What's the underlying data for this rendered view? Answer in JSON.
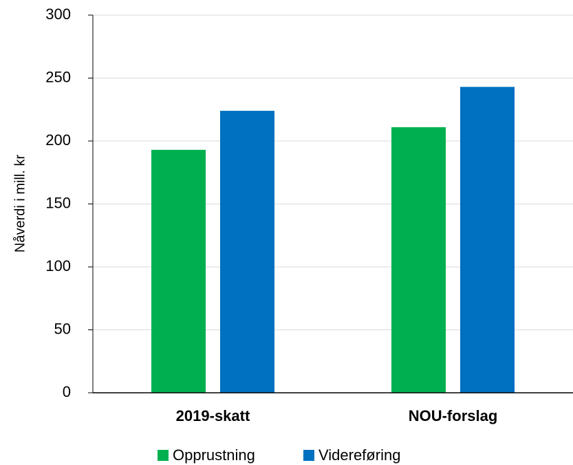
{
  "chart_data": {
    "type": "bar",
    "categories": [
      "2019-skatt",
      "NOU-forslag"
    ],
    "series": [
      {
        "name": "Opprustning",
        "color": "#00b050",
        "values": [
          193,
          211
        ]
      },
      {
        "name": "Videreføring",
        "color": "#0070c0",
        "values": [
          224,
          243
        ]
      }
    ],
    "ylabel": "Nåverdi i mill. kr",
    "ylim": [
      0,
      300
    ],
    "yticks": [
      0,
      50,
      100,
      150,
      200,
      250,
      300
    ],
    "grid": true
  }
}
